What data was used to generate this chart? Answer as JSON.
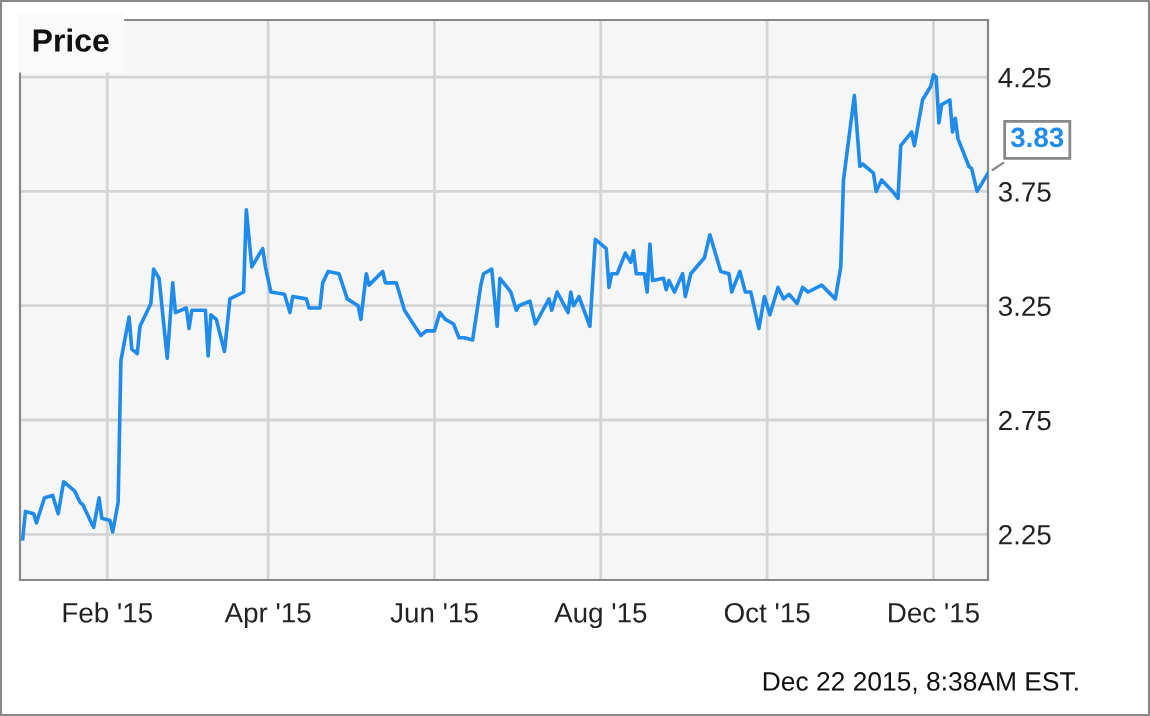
{
  "chart_data": {
    "type": "line",
    "title": "Price",
    "x": [
      "2015-01-01",
      "2015-01-02",
      "2015-01-05",
      "2015-01-06",
      "2015-01-09",
      "2015-01-12",
      "2015-01-14",
      "2015-01-16",
      "2015-01-20",
      "2015-01-22",
      "2015-01-23",
      "2015-01-27",
      "2015-01-29",
      "2015-01-30",
      "2015-02-02",
      "2015-02-03",
      "2015-02-05",
      "2015-02-06",
      "2015-02-09",
      "2015-02-10",
      "2015-02-12",
      "2015-02-13",
      "2015-02-17",
      "2015-02-18",
      "2015-02-20",
      "2015-02-23",
      "2015-02-25",
      "2015-02-26",
      "2015-03-02",
      "2015-03-03",
      "2015-03-04",
      "2015-03-09",
      "2015-03-10",
      "2015-03-11",
      "2015-03-13",
      "2015-03-16",
      "2015-03-18",
      "2015-03-23",
      "2015-03-24",
      "2015-03-26",
      "2015-03-30",
      "2015-03-31",
      "2015-04-02",
      "2015-04-07",
      "2015-04-09",
      "2015-04-10",
      "2015-04-15",
      "2015-04-16",
      "2015-04-20",
      "2015-04-21",
      "2015-04-23",
      "2015-04-27",
      "2015-04-30",
      "2015-05-04",
      "2015-05-05",
      "2015-05-07",
      "2015-05-08",
      "2015-05-13",
      "2015-05-14",
      "2015-05-18",
      "2015-05-21",
      "2015-05-27",
      "2015-05-29",
      "2015-06-01",
      "2015-06-03",
      "2015-06-05",
      "2015-06-08",
      "2015-06-10",
      "2015-06-12",
      "2015-06-15",
      "2015-06-16",
      "2015-06-18",
      "2015-06-19",
      "2015-06-22",
      "2015-06-24",
      "2015-06-25",
      "2015-06-29",
      "2015-07-01",
      "2015-07-02",
      "2015-07-06",
      "2015-07-08",
      "2015-07-13",
      "2015-07-14",
      "2015-07-16",
      "2015-07-20",
      "2015-07-21",
      "2015-07-22",
      "2015-07-24",
      "2015-07-28",
      "2015-07-30",
      "2015-08-03",
      "2015-08-04",
      "2015-08-05",
      "2015-08-07",
      "2015-08-10",
      "2015-08-12",
      "2015-08-13",
      "2015-08-14",
      "2015-08-17",
      "2015-08-18",
      "2015-08-19",
      "2015-08-20",
      "2015-08-24",
      "2015-08-25",
      "2015-08-26",
      "2015-08-28",
      "2015-08-31",
      "2015-09-01",
      "2015-09-03",
      "2015-09-08",
      "2015-09-10",
      "2015-09-14",
      "2015-09-17",
      "2015-09-18",
      "2015-09-21",
      "2015-09-23",
      "2015-09-25",
      "2015-09-28",
      "2015-09-30",
      "2015-10-02",
      "2015-10-05",
      "2015-10-07",
      "2015-10-09",
      "2015-10-12",
      "2015-10-14",
      "2015-10-16",
      "2015-10-21",
      "2015-10-26",
      "2015-10-28",
      "2015-10-29",
      "2015-11-02",
      "2015-11-04",
      "2015-11-05",
      "2015-11-09",
      "2015-11-10",
      "2015-11-12",
      "2015-11-16",
      "2015-11-18",
      "2015-11-19",
      "2015-11-23",
      "2015-11-24",
      "2015-11-27",
      "2015-11-30",
      "2015-12-01",
      "2015-12-02",
      "2015-12-03",
      "2015-12-04",
      "2015-12-07",
      "2015-12-08",
      "2015-12-09",
      "2015-12-10",
      "2015-12-14",
      "2015-12-15",
      "2015-12-17",
      "2015-12-21"
    ],
    "series": [
      {
        "color": "#1f8ceb",
        "values": [
          2.23,
          2.35,
          2.34,
          2.3,
          2.41,
          2.42,
          2.34,
          2.48,
          2.44,
          2.39,
          2.38,
          2.28,
          2.41,
          2.32,
          2.31,
          2.26,
          2.39,
          3.01,
          3.2,
          3.06,
          3.04,
          3.16,
          3.26,
          3.41,
          3.37,
          3.02,
          3.35,
          3.22,
          3.24,
          3.15,
          3.23,
          3.23,
          3.03,
          3.21,
          3.19,
          3.05,
          3.28,
          3.31,
          3.67,
          3.42,
          3.5,
          3.42,
          3.31,
          3.3,
          3.22,
          3.29,
          3.28,
          3.24,
          3.24,
          3.35,
          3.4,
          3.39,
          3.28,
          3.25,
          3.19,
          3.39,
          3.34,
          3.4,
          3.35,
          3.35,
          3.23,
          3.12,
          3.14,
          3.14,
          3.22,
          3.19,
          3.17,
          3.11,
          3.11,
          3.1,
          3.18,
          3.34,
          3.39,
          3.41,
          3.16,
          3.37,
          3.31,
          3.23,
          3.25,
          3.27,
          3.17,
          3.28,
          3.23,
          3.31,
          3.22,
          3.31,
          3.25,
          3.29,
          3.16,
          3.54,
          3.5,
          3.33,
          3.39,
          3.39,
          3.48,
          3.44,
          3.49,
          3.39,
          3.39,
          3.31,
          3.52,
          3.36,
          3.37,
          3.32,
          3.36,
          3.31,
          3.39,
          3.29,
          3.39,
          3.46,
          3.56,
          3.4,
          3.39,
          3.31,
          3.4,
          3.31,
          3.31,
          3.15,
          3.29,
          3.21,
          3.33,
          3.28,
          3.3,
          3.26,
          3.33,
          3.31,
          3.34,
          3.28,
          3.42,
          3.8,
          4.17,
          3.86,
          3.87,
          3.83,
          3.75,
          3.8,
          3.75,
          3.72,
          3.95,
          4.01,
          3.95,
          4.15,
          4.21,
          4.26,
          4.25,
          4.05,
          4.13,
          4.15,
          4.01,
          4.07,
          3.98,
          3.86,
          3.85,
          3.75,
          3.83
        ]
      }
    ],
    "xlim": [
      "2014-12-31",
      "2015-12-21"
    ],
    "xticks": [
      {
        "value": "2015-02-01",
        "label": "Feb '15"
      },
      {
        "value": "2015-04-01",
        "label": "Apr '15"
      },
      {
        "value": "2015-06-01",
        "label": "Jun '15"
      },
      {
        "value": "2015-08-01",
        "label": "Aug '15"
      },
      {
        "value": "2015-10-01",
        "label": "Oct '15"
      },
      {
        "value": "2015-12-01",
        "label": "Dec '15"
      }
    ],
    "ylim": [
      2.05,
      4.5
    ],
    "yticks": [
      2.25,
      2.75,
      3.25,
      3.75,
      4.25
    ],
    "grid": true,
    "legend": false,
    "annotations": [
      {
        "text": "3.83",
        "x": "2015-12-21",
        "y": 3.83
      },
      "Dec 22 2015, 8:38AM EST."
    ]
  }
}
